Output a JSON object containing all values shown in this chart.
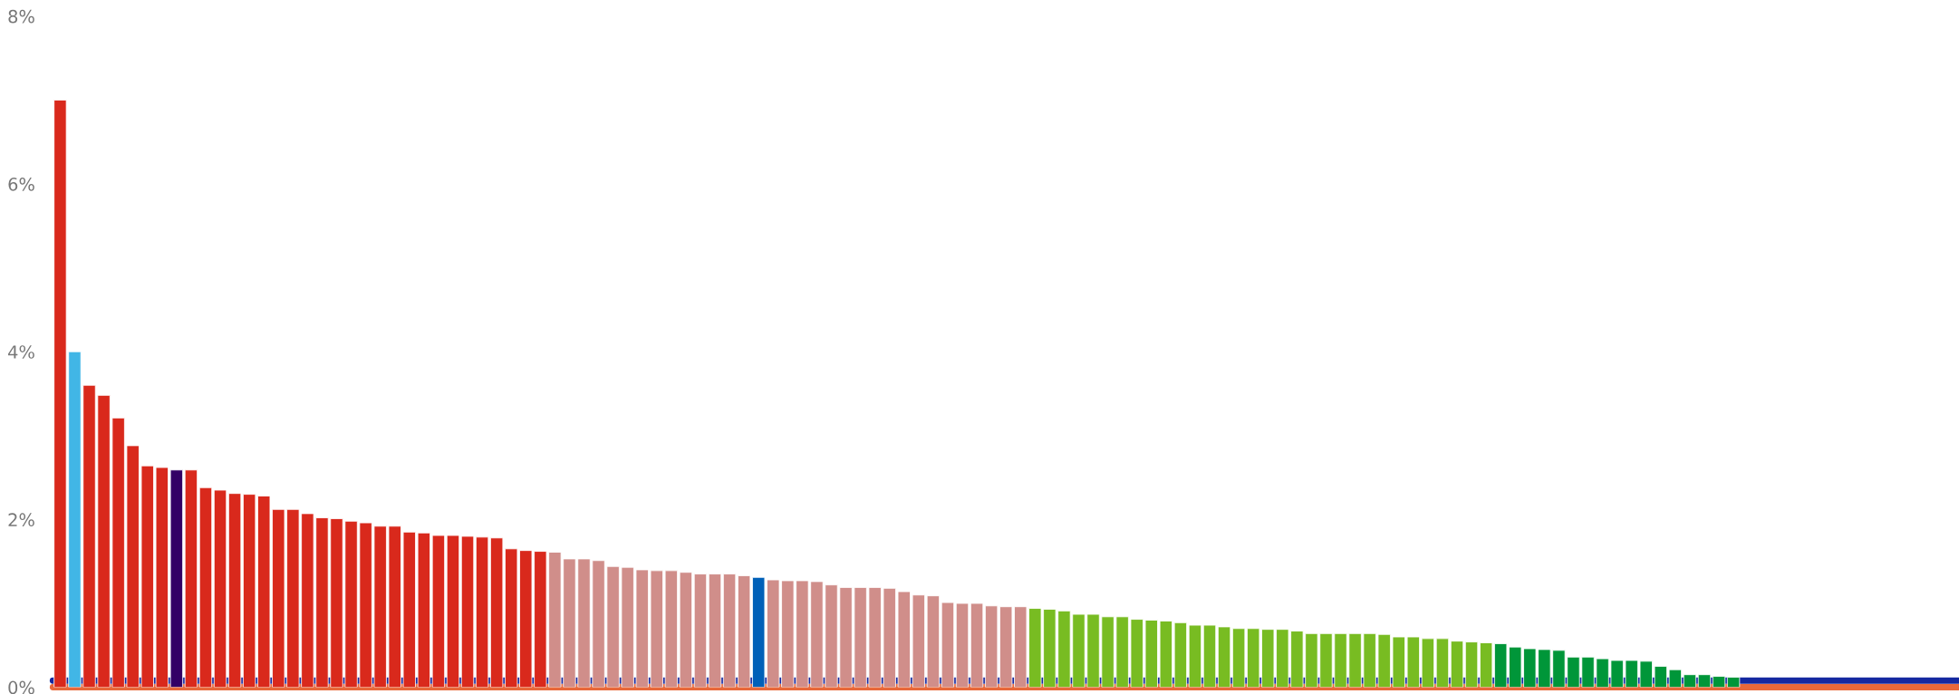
{
  "chart_data": {
    "type": "bar",
    "categories": [
      null,
      null,
      null,
      null,
      null,
      null,
      null,
      null,
      null,
      null,
      null,
      null,
      null,
      null,
      null,
      null,
      null,
      null,
      null,
      null,
      null,
      null,
      null,
      null,
      null,
      null,
      null,
      null,
      null,
      null,
      null,
      null,
      null,
      null,
      null,
      null,
      null,
      null,
      null,
      null,
      null,
      null,
      null,
      null,
      null,
      null,
      null,
      null,
      null,
      null,
      null,
      null,
      null,
      null,
      null,
      null,
      null,
      null,
      null,
      null,
      null,
      null,
      null,
      null,
      null,
      null,
      null,
      null,
      null,
      null,
      null,
      null,
      null,
      null,
      null,
      null,
      null,
      null,
      null,
      null,
      null,
      null,
      null,
      null,
      null,
      null,
      null,
      null,
      null,
      null,
      null,
      null,
      null,
      null,
      null,
      null,
      null,
      null,
      null,
      null,
      null,
      null,
      null,
      null,
      null,
      null,
      null,
      null,
      null,
      null,
      null,
      null,
      null,
      null,
      null,
      null,
      null,
      null,
      null,
      null,
      null,
      null,
      null,
      null,
      null,
      null,
      null,
      null,
      null,
      null,
      null
    ],
    "values": [
      7.0,
      4.0,
      3.6,
      3.48,
      3.21,
      2.88,
      2.64,
      2.62,
      2.59,
      2.59,
      2.38,
      2.35,
      2.31,
      2.3,
      2.28,
      2.12,
      2.12,
      2.07,
      2.02,
      2.01,
      1.98,
      1.96,
      1.92,
      1.92,
      1.85,
      1.84,
      1.81,
      1.81,
      1.8,
      1.79,
      1.78,
      1.65,
      1.63,
      1.62,
      1.61,
      1.53,
      1.53,
      1.51,
      1.44,
      1.43,
      1.4,
      1.39,
      1.39,
      1.37,
      1.35,
      1.35,
      1.35,
      1.33,
      1.31,
      1.28,
      1.27,
      1.27,
      1.26,
      1.22,
      1.19,
      1.19,
      1.19,
      1.18,
      1.14,
      1.1,
      1.09,
      1.01,
      1.0,
      1.0,
      0.97,
      0.96,
      0.96,
      0.94,
      0.93,
      0.91,
      0.87,
      0.87,
      0.84,
      0.84,
      0.81,
      0.8,
      0.79,
      0.77,
      0.74,
      0.74,
      0.72,
      0.7,
      0.7,
      0.69,
      0.69,
      0.67,
      0.64,
      0.64,
      0.64,
      0.64,
      0.64,
      0.63,
      0.6,
      0.6,
      0.58,
      0.58,
      0.55,
      0.54,
      0.53,
      0.52,
      0.48,
      0.46,
      0.45,
      0.44,
      0.36,
      0.36,
      0.34,
      0.32,
      0.32,
      0.31,
      0.25,
      0.21,
      0.15,
      0.15,
      0.13,
      0.12,
      null,
      null,
      null,
      null,
      null,
      null,
      null,
      null,
      null,
      null,
      null,
      null,
      null,
      null,
      null
    ],
    "colors": [
      "#d9291c",
      "#41b6e6",
      "#d9291c",
      "#d9291c",
      "#d9291c",
      "#d9291c",
      "#d9291c",
      "#d9291c",
      "#330066",
      "#d9291c",
      "#d9291c",
      "#d9291c",
      "#d9291c",
      "#d9291c",
      "#d9291c",
      "#d9291c",
      "#d9291c",
      "#d9291c",
      "#d9291c",
      "#d9291c",
      "#d9291c",
      "#d9291c",
      "#d9291c",
      "#d9291c",
      "#d9291c",
      "#d9291c",
      "#d9291c",
      "#d9291c",
      "#d9291c",
      "#d9291c",
      "#d9291c",
      "#d9291c",
      "#d9291c",
      "#d9291c",
      "#d08e8a",
      "#d08e8a",
      "#d08e8a",
      "#d08e8a",
      "#d08e8a",
      "#d08e8a",
      "#d08e8a",
      "#d08e8a",
      "#d08e8a",
      "#d08e8a",
      "#d08e8a",
      "#d08e8a",
      "#d08e8a",
      "#d08e8a",
      "#0060b8",
      "#d08e8a",
      "#d08e8a",
      "#d08e8a",
      "#d08e8a",
      "#d08e8a",
      "#d08e8a",
      "#d08e8a",
      "#d08e8a",
      "#d08e8a",
      "#d08e8a",
      "#d08e8a",
      "#d08e8a",
      "#d08e8a",
      "#d08e8a",
      "#d08e8a",
      "#d08e8a",
      "#d08e8a",
      "#d08e8a",
      "#78bc22",
      "#78bc22",
      "#78bc22",
      "#78bc22",
      "#78bc22",
      "#78bc22",
      "#78bc22",
      "#78bc22",
      "#78bc22",
      "#78bc22",
      "#78bc22",
      "#78bc22",
      "#78bc22",
      "#78bc22",
      "#78bc22",
      "#78bc22",
      "#78bc22",
      "#78bc22",
      "#78bc22",
      "#78bc22",
      "#78bc22",
      "#78bc22",
      "#78bc22",
      "#78bc22",
      "#78bc22",
      "#78bc22",
      "#78bc22",
      "#78bc22",
      "#78bc22",
      "#78bc22",
      "#78bc22",
      "#78bc22",
      "#009639",
      "#009639",
      "#009639",
      "#009639",
      "#009639",
      "#009639",
      "#009639",
      "#009639",
      "#009639",
      "#009639",
      "#009639",
      "#009639",
      "#009639",
      "#009639",
      "#009639",
      "#009639",
      "#009639",
      "#009639",
      "#009639",
      "#009639",
      "#009639",
      "#009639",
      "#009639",
      "#009639",
      null,
      null,
      null,
      null,
      null,
      null,
      null,
      null
    ],
    "ylim": [
      0,
      8
    ],
    "yticks": [
      {
        "value": 0,
        "label": "0%"
      },
      {
        "value": 2,
        "label": "2%"
      },
      {
        "value": 4,
        "label": "4%"
      },
      {
        "value": 6,
        "label": "6%"
      },
      {
        "value": 8,
        "label": "8%"
      }
    ],
    "ref_lines": [
      {
        "axis": "y",
        "value": 0.08,
        "color": "#1428a0"
      },
      {
        "axis": "y",
        "value": 0,
        "color": "#e8683a"
      }
    ],
    "grid": false,
    "legend": false
  }
}
